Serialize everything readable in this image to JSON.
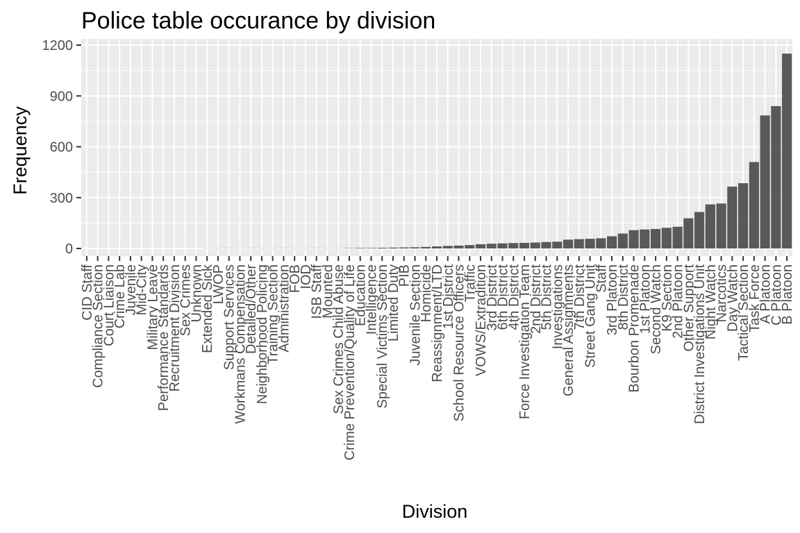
{
  "chart_data": {
    "type": "bar",
    "title": "Police table occurance by division",
    "xlabel": "Division",
    "ylabel": "Frequency",
    "ylim": [
      -15,
      1200
    ],
    "yticks": [
      0,
      300,
      600,
      900,
      1200
    ],
    "grid": true,
    "bar_color": "#595959",
    "panel_color": "#ebebeb",
    "grid_color": "#ffffff",
    "categories": [
      "CID Staff",
      "Compliance Section",
      "Court Liaison",
      "Crime Lab",
      "Juvenile",
      "Mid-City",
      "Military Leave",
      "Performance Standards",
      "Recruitment Division",
      "Sex Crimes",
      "Unknown",
      "Extended Sick",
      "LWOP",
      "Support Services",
      "Workmans Compensation",
      "Detailed/Other",
      "Neighborhood Policing",
      "Training Section",
      "Administration",
      "FOB",
      "IOD",
      "ISB Staff",
      "Mounted",
      "Sex Crimes Child Abuse",
      "Crime Prevention/Quality of Life",
      "Education",
      "Intelligence",
      "Special Victims Section",
      "Limited Duty",
      "PIB",
      "Juvenile Section",
      "Homicide",
      "Reassignment/LTD",
      "1st District",
      "School Resource Officers",
      "Traffic",
      "VOWS/Extradition",
      "3rd District",
      "6th District",
      "4th District",
      "Force Investigation Team",
      "2nd District",
      "5th District",
      "Investigations",
      "General Assignments",
      "7th District",
      "Street Gang Unit",
      "Staff",
      "3rd Platoon",
      "8th District",
      "Bourbon Promenade",
      "1st Platoon",
      "Second Watch",
      "K9 Section",
      "2nd Platoon",
      "Other Support",
      "District Investigations Unit",
      "Night Watch",
      "Narcotics",
      "Day Watch",
      "Tactical Section",
      "Task Force",
      "A Platoon",
      "C Platoon",
      "B Platoon"
    ],
    "values": [
      0,
      0,
      0,
      0,
      0,
      0,
      0,
      0,
      0,
      0,
      0,
      1,
      1,
      1,
      1,
      1,
      1,
      1,
      1,
      1,
      1,
      1,
      1,
      1,
      2,
      3,
      3,
      4,
      5,
      6,
      7,
      9,
      12,
      15,
      17,
      20,
      25,
      28,
      30,
      32,
      33,
      35,
      38,
      40,
      52,
      55,
      57,
      60,
      72,
      88,
      108,
      112,
      115,
      122,
      128,
      178,
      215,
      260,
      265,
      365,
      385,
      510,
      785,
      840,
      1150
    ]
  }
}
